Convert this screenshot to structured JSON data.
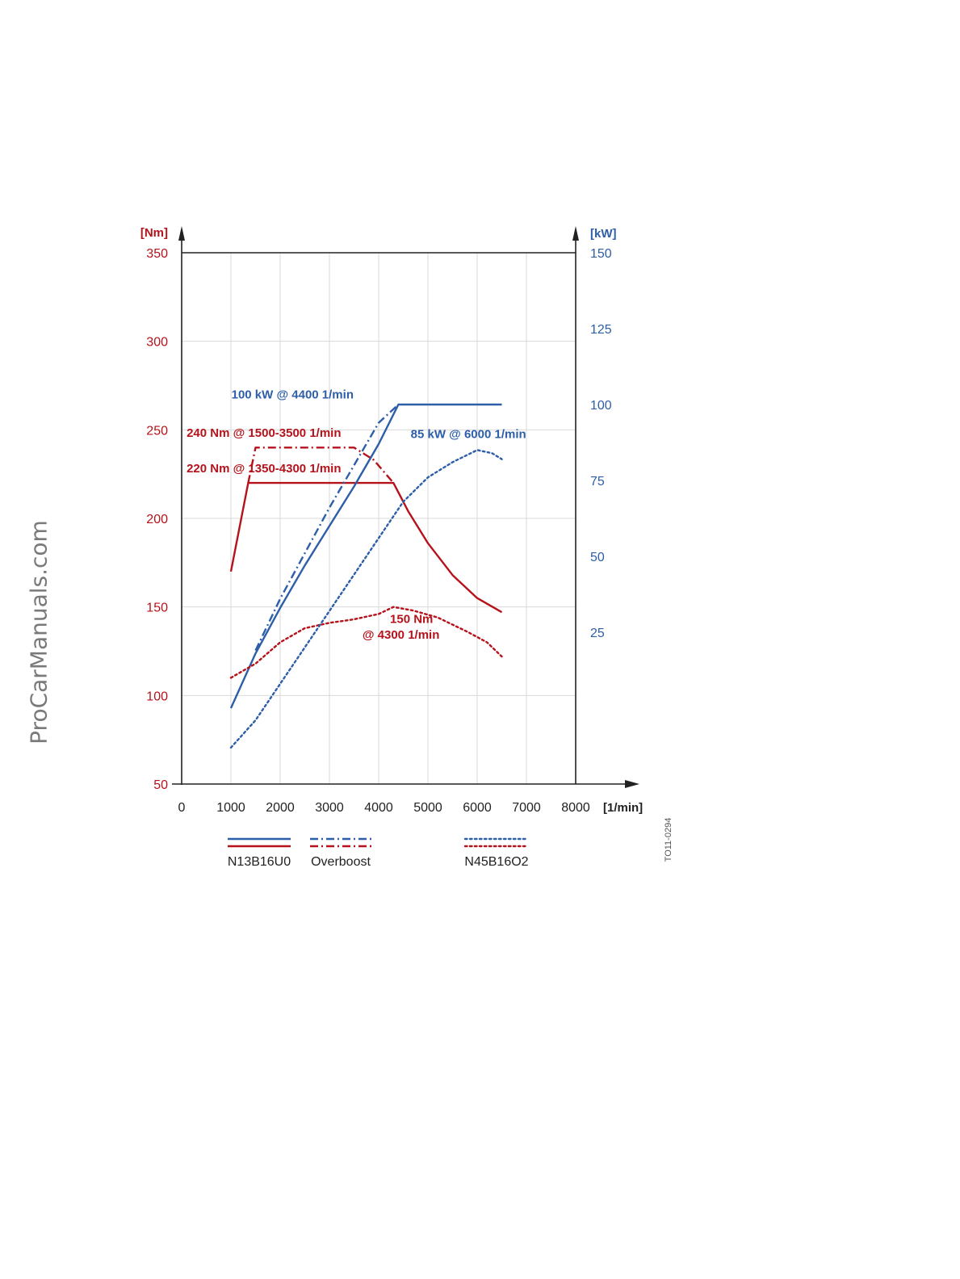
{
  "watermark": "ProCarManuals.com",
  "figure_id": "TO11-0294",
  "colors": {
    "torque": "#b5121b",
    "power": "#2d5ea8",
    "axis": "#222222",
    "grid": "#d9d9d9",
    "watermark": "#7a7a7a"
  },
  "chart_data": {
    "type": "line",
    "title": "",
    "xlabel": "[1/min]",
    "ylabel_left": "[Nm]",
    "ylabel_right": "[kW]",
    "x_ticks": [
      "0",
      "1000",
      "2000",
      "3000",
      "4000",
      "5000",
      "6000",
      "7000",
      "8000"
    ],
    "y_left_ticks": [
      "50",
      "100",
      "150",
      "200",
      "250",
      "300",
      "350"
    ],
    "y_right_ticks": [
      "25",
      "50",
      "75",
      "100",
      "125",
      "150"
    ],
    "xlim": [
      0,
      8000
    ],
    "ylim_left": [
      50,
      350
    ],
    "ylim_right": [
      -25,
      150
    ],
    "grid": true,
    "series": [
      {
        "engine": "N13B16U0",
        "quantity": "torque",
        "axis": "left",
        "style": "solid",
        "x": [
          1000,
          1350,
          4300,
          4600,
          5000,
          5500,
          6000,
          6500
        ],
        "y": [
          170,
          220,
          220,
          204,
          186,
          168,
          155,
          147
        ]
      },
      {
        "engine": "N13B16U0",
        "quantity": "power",
        "axis": "right",
        "style": "solid",
        "x": [
          1000,
          1500,
          2000,
          2500,
          3000,
          3500,
          4000,
          4400,
          5000,
          6000,
          6500
        ],
        "y": [
          0,
          18,
          33,
          47,
          60,
          73,
          87,
          100,
          100,
          100,
          100
        ]
      },
      {
        "engine": "Overboost",
        "quantity": "torque",
        "axis": "left",
        "style": "dashdot",
        "x": [
          1350,
          1500,
          3500,
          3900,
          4300
        ],
        "y": [
          220,
          240,
          240,
          233,
          220
        ]
      },
      {
        "engine": "Overboost",
        "quantity": "power",
        "axis": "right",
        "style": "dashdot",
        "x": [
          1500,
          2000,
          2500,
          3000,
          3500,
          4000,
          4400
        ],
        "y": [
          19,
          36,
          51,
          66,
          80,
          94,
          100
        ]
      },
      {
        "engine": "N45B16O2",
        "quantity": "torque",
        "axis": "left",
        "style": "dotted",
        "x": [
          1000,
          1500,
          2000,
          2500,
          3000,
          3500,
          4000,
          4300,
          4700,
          5200,
          5800,
          6200,
          6500
        ],
        "y": [
          110,
          118,
          130,
          138,
          141,
          143,
          146,
          150,
          148,
          144,
          136,
          130,
          122
        ]
      },
      {
        "engine": "N45B16O2",
        "quantity": "power",
        "axis": "right",
        "style": "dotted",
        "x": [
          1000,
          1500,
          2000,
          2500,
          3000,
          3500,
          4000,
          4500,
          5000,
          5500,
          6000,
          6300,
          6500
        ],
        "y": [
          -13,
          -4,
          8,
          20,
          32,
          44,
          56,
          68,
          76,
          81,
          85,
          84,
          82
        ]
      }
    ],
    "annotations": [
      {
        "text": "100 kW @ 4400 1/min",
        "color": "power",
        "x": 1010,
        "y": 102,
        "axis": "right"
      },
      {
        "text": "240 Nm @ 1500-3500 1/min",
        "color": "torque",
        "x": 100,
        "y": 246,
        "axis": "left"
      },
      {
        "text": "220 Nm @ 1350-4300 1/min",
        "color": "torque",
        "x": 100,
        "y": 226,
        "axis": "left"
      },
      {
        "text": "85 kW @ 6000 1/min",
        "color": "power",
        "x": 4650,
        "y": 89,
        "axis": "right"
      },
      {
        "text": "150 Nm",
        "color": "torque",
        "x": 4230,
        "y": 141,
        "axis": "left"
      },
      {
        "text": "@ 4300 1/min",
        "color": "torque",
        "x": 3670,
        "y": 132,
        "axis": "left"
      }
    ],
    "legend": {
      "placement": "bottom",
      "entries": [
        "N13B16U0",
        "Overboost",
        "N45B16O2"
      ]
    }
  }
}
